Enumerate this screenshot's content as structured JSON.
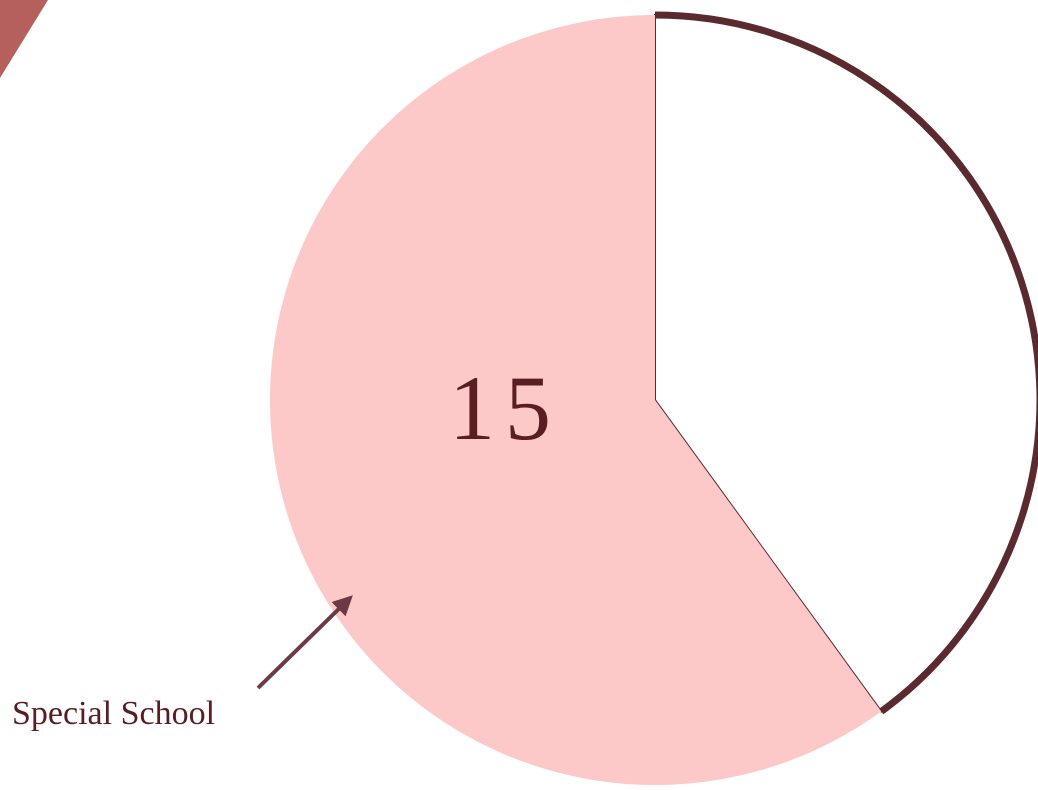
{
  "chart_data": {
    "type": "pie",
    "categories": [
      null,
      "Special School"
    ],
    "values": [
      10,
      15
    ],
    "colors": [
      "#ffffff",
      "#fdc8c8"
    ],
    "start_angle": 0,
    "direction": "clockwise"
  }
}
